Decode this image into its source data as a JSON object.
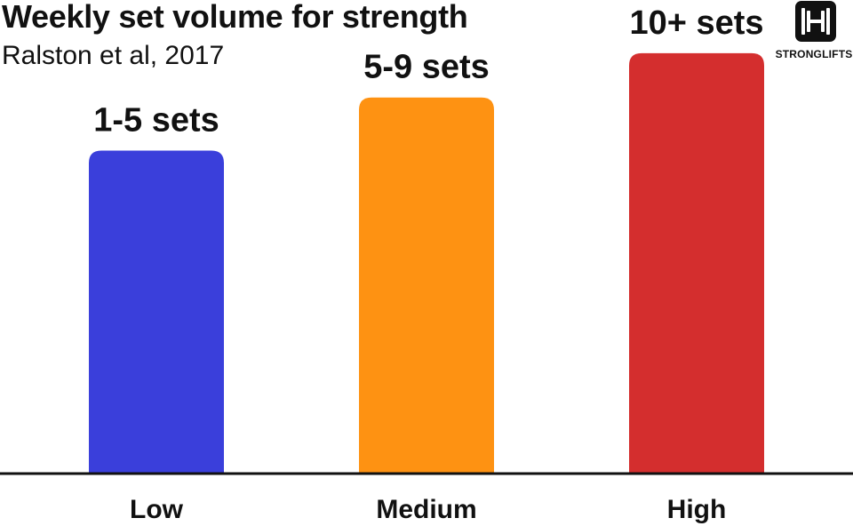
{
  "chart_data": {
    "type": "bar",
    "title": "Weekly set volume for strength",
    "subtitle": "Ralston et al, 2017",
    "xlabel": "",
    "ylabel": "",
    "categories": [
      "Low",
      "Medium",
      "High"
    ],
    "values": [
      0.73,
      0.85,
      0.95
    ],
    "bar_labels": [
      "1-5 sets",
      "5-9 sets",
      "10+ sets"
    ],
    "colors": [
      "#3a3fdb",
      "#fe9212",
      "#d42e2e"
    ],
    "ylim": [
      0,
      1
    ],
    "grid": false,
    "legend": "none"
  },
  "logo": {
    "text": "STRONGLIFTS",
    "icon": "barbell-icon"
  }
}
